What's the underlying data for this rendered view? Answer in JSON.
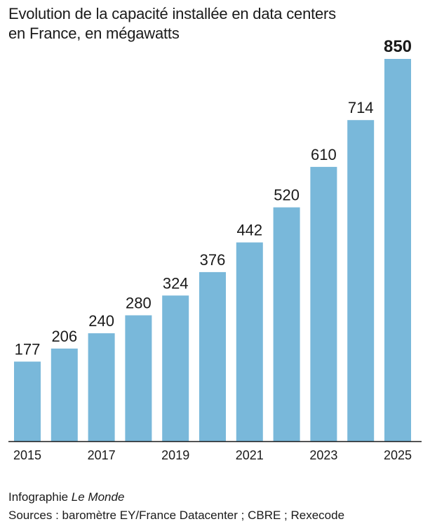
{
  "title": {
    "line1": "Evolution de la capacité installée en data centers",
    "line2": "en France, en mégawatts"
  },
  "colors": {
    "bar": "#79b8da",
    "axis": "#1a1a1a",
    "text": "#1a1a1a"
  },
  "chart_data": {
    "type": "bar",
    "categories": [
      "2015",
      "2016",
      "2017",
      "2018",
      "2019",
      "2020",
      "2021",
      "2022",
      "2023",
      "2024",
      "2025"
    ],
    "values": [
      177,
      206,
      240,
      280,
      324,
      376,
      442,
      520,
      610,
      714,
      850
    ],
    "data_labels": [
      "177",
      "206",
      "240",
      "280",
      "324",
      "376",
      "442",
      "520",
      "610",
      "714",
      "850"
    ],
    "highlighted_label": "850",
    "tick_labels": [
      "2015",
      "2017",
      "2019",
      "2021",
      "2023",
      "2025"
    ],
    "title": "Evolution de la capacité installée en data centers en France, en mégawatts",
    "xlabel": "",
    "ylabel": "",
    "ylim": [
      0,
      850
    ],
    "grid": false,
    "legend": "none"
  },
  "footer": {
    "credit_prefix": "Infographie ",
    "credit_brand": "Le Monde",
    "sources": "Sources : baromètre EY/France Datacenter ; CBRE ; Rexecode"
  }
}
